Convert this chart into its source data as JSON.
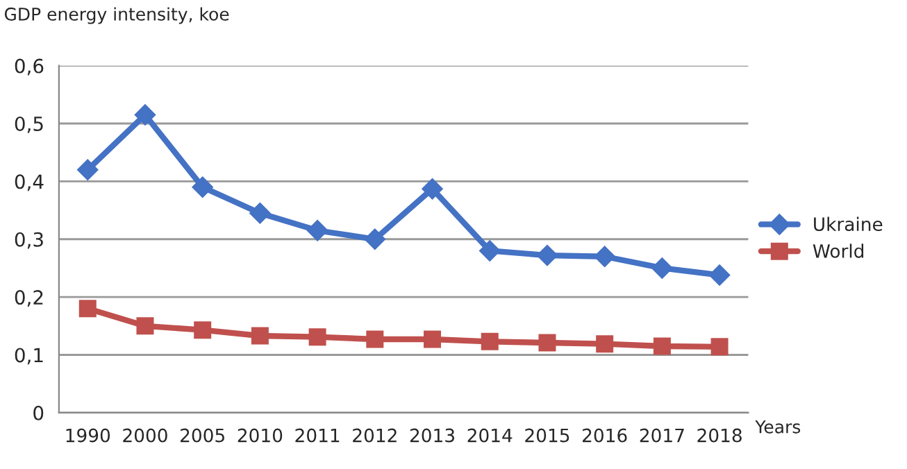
{
  "chart_data": {
    "type": "line",
    "ylabel": "GDP energy intensity, koe",
    "xlabel": "Years",
    "categories": [
      "1990",
      "2000",
      "2005",
      "2010",
      "2011",
      "2012",
      "2013",
      "2014",
      "2015",
      "2016",
      "2017",
      "2018"
    ],
    "series": [
      {
        "name": "Ukraine",
        "color": "#4472c4",
        "marker": "diamond",
        "values": [
          0.42,
          0.515,
          0.39,
          0.345,
          0.315,
          0.3,
          0.387,
          0.28,
          0.272,
          0.27,
          0.25,
          0.238
        ]
      },
      {
        "name": "World",
        "color": "#c0504d",
        "marker": "square",
        "values": [
          0.18,
          0.15,
          0.143,
          0.133,
          0.131,
          0.127,
          0.127,
          0.123,
          0.121,
          0.119,
          0.115,
          0.114
        ]
      }
    ],
    "ylim": [
      0,
      0.6
    ],
    "yticks": [
      0,
      {
        "value": 0.1,
        "label": "0,1"
      },
      {
        "value": 0.2,
        "label": "0,2"
      },
      {
        "value": 0.3,
        "label": "0,3"
      },
      {
        "value": 0.4,
        "label": "0,4"
      },
      {
        "value": 0.5,
        "label": "0,5"
      },
      {
        "value": 0.6,
        "label": "0,6"
      }
    ],
    "grid": "y",
    "legend": "right",
    "line_style": "solid"
  }
}
